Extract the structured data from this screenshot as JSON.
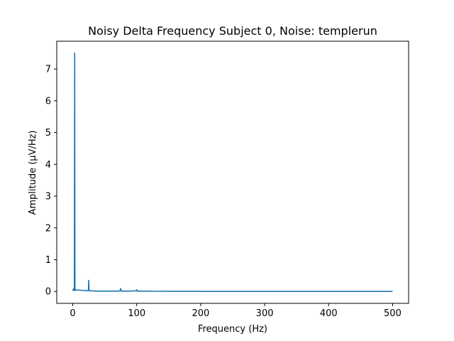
{
  "chart_data": {
    "type": "line",
    "title": "Noisy Delta Frequency Subject 0, Noise: templerun",
    "xlabel": "Frequency (Hz)",
    "ylabel": "Amplitude (μV/Hz)",
    "xlim": [
      -25,
      525
    ],
    "ylim": [
      -0.375,
      7.875
    ],
    "xticks": [
      0,
      100,
      200,
      300,
      400,
      500
    ],
    "xtick_labels": [
      "0",
      "100",
      "200",
      "300",
      "400",
      "500"
    ],
    "yticks": [
      0,
      1,
      2,
      3,
      4,
      5,
      6,
      7
    ],
    "ytick_labels": [
      "0",
      "1",
      "2",
      "3",
      "4",
      "5",
      "6",
      "7"
    ],
    "grid": false,
    "line_color": "#1f77b4",
    "series": [
      {
        "x": [
          0,
          0.5,
          1,
          1.5,
          2,
          2.5,
          3,
          3.5,
          4,
          5,
          6,
          8,
          10,
          12,
          15,
          18,
          20,
          22,
          24,
          24.5,
          25,
          25.5,
          26,
          28,
          30,
          35,
          40,
          50,
          60,
          70,
          74,
          75,
          76,
          80,
          90,
          99,
          100,
          101,
          110,
          120,
          130,
          140,
          150,
          160,
          200,
          250,
          300,
          350,
          400,
          450,
          500
        ],
        "y": [
          0.02,
          0.05,
          0.08,
          0.06,
          0.04,
          0.03,
          7.5,
          0.03,
          0.05,
          0.04,
          0.05,
          0.04,
          0.04,
          0.04,
          0.03,
          0.03,
          0.03,
          0.02,
          0.03,
          0.03,
          0.35,
          0.03,
          0.02,
          0.02,
          0.02,
          0.01,
          0.01,
          0.01,
          0.01,
          0.01,
          0.02,
          0.09,
          0.01,
          0.01,
          0.01,
          0.02,
          0.05,
          0.01,
          0.01,
          0.01,
          0.005,
          0.005,
          0.003,
          0.003,
          0.002,
          0.002,
          0.002,
          0.002,
          0.002,
          0.002,
          0.002
        ]
      }
    ]
  }
}
